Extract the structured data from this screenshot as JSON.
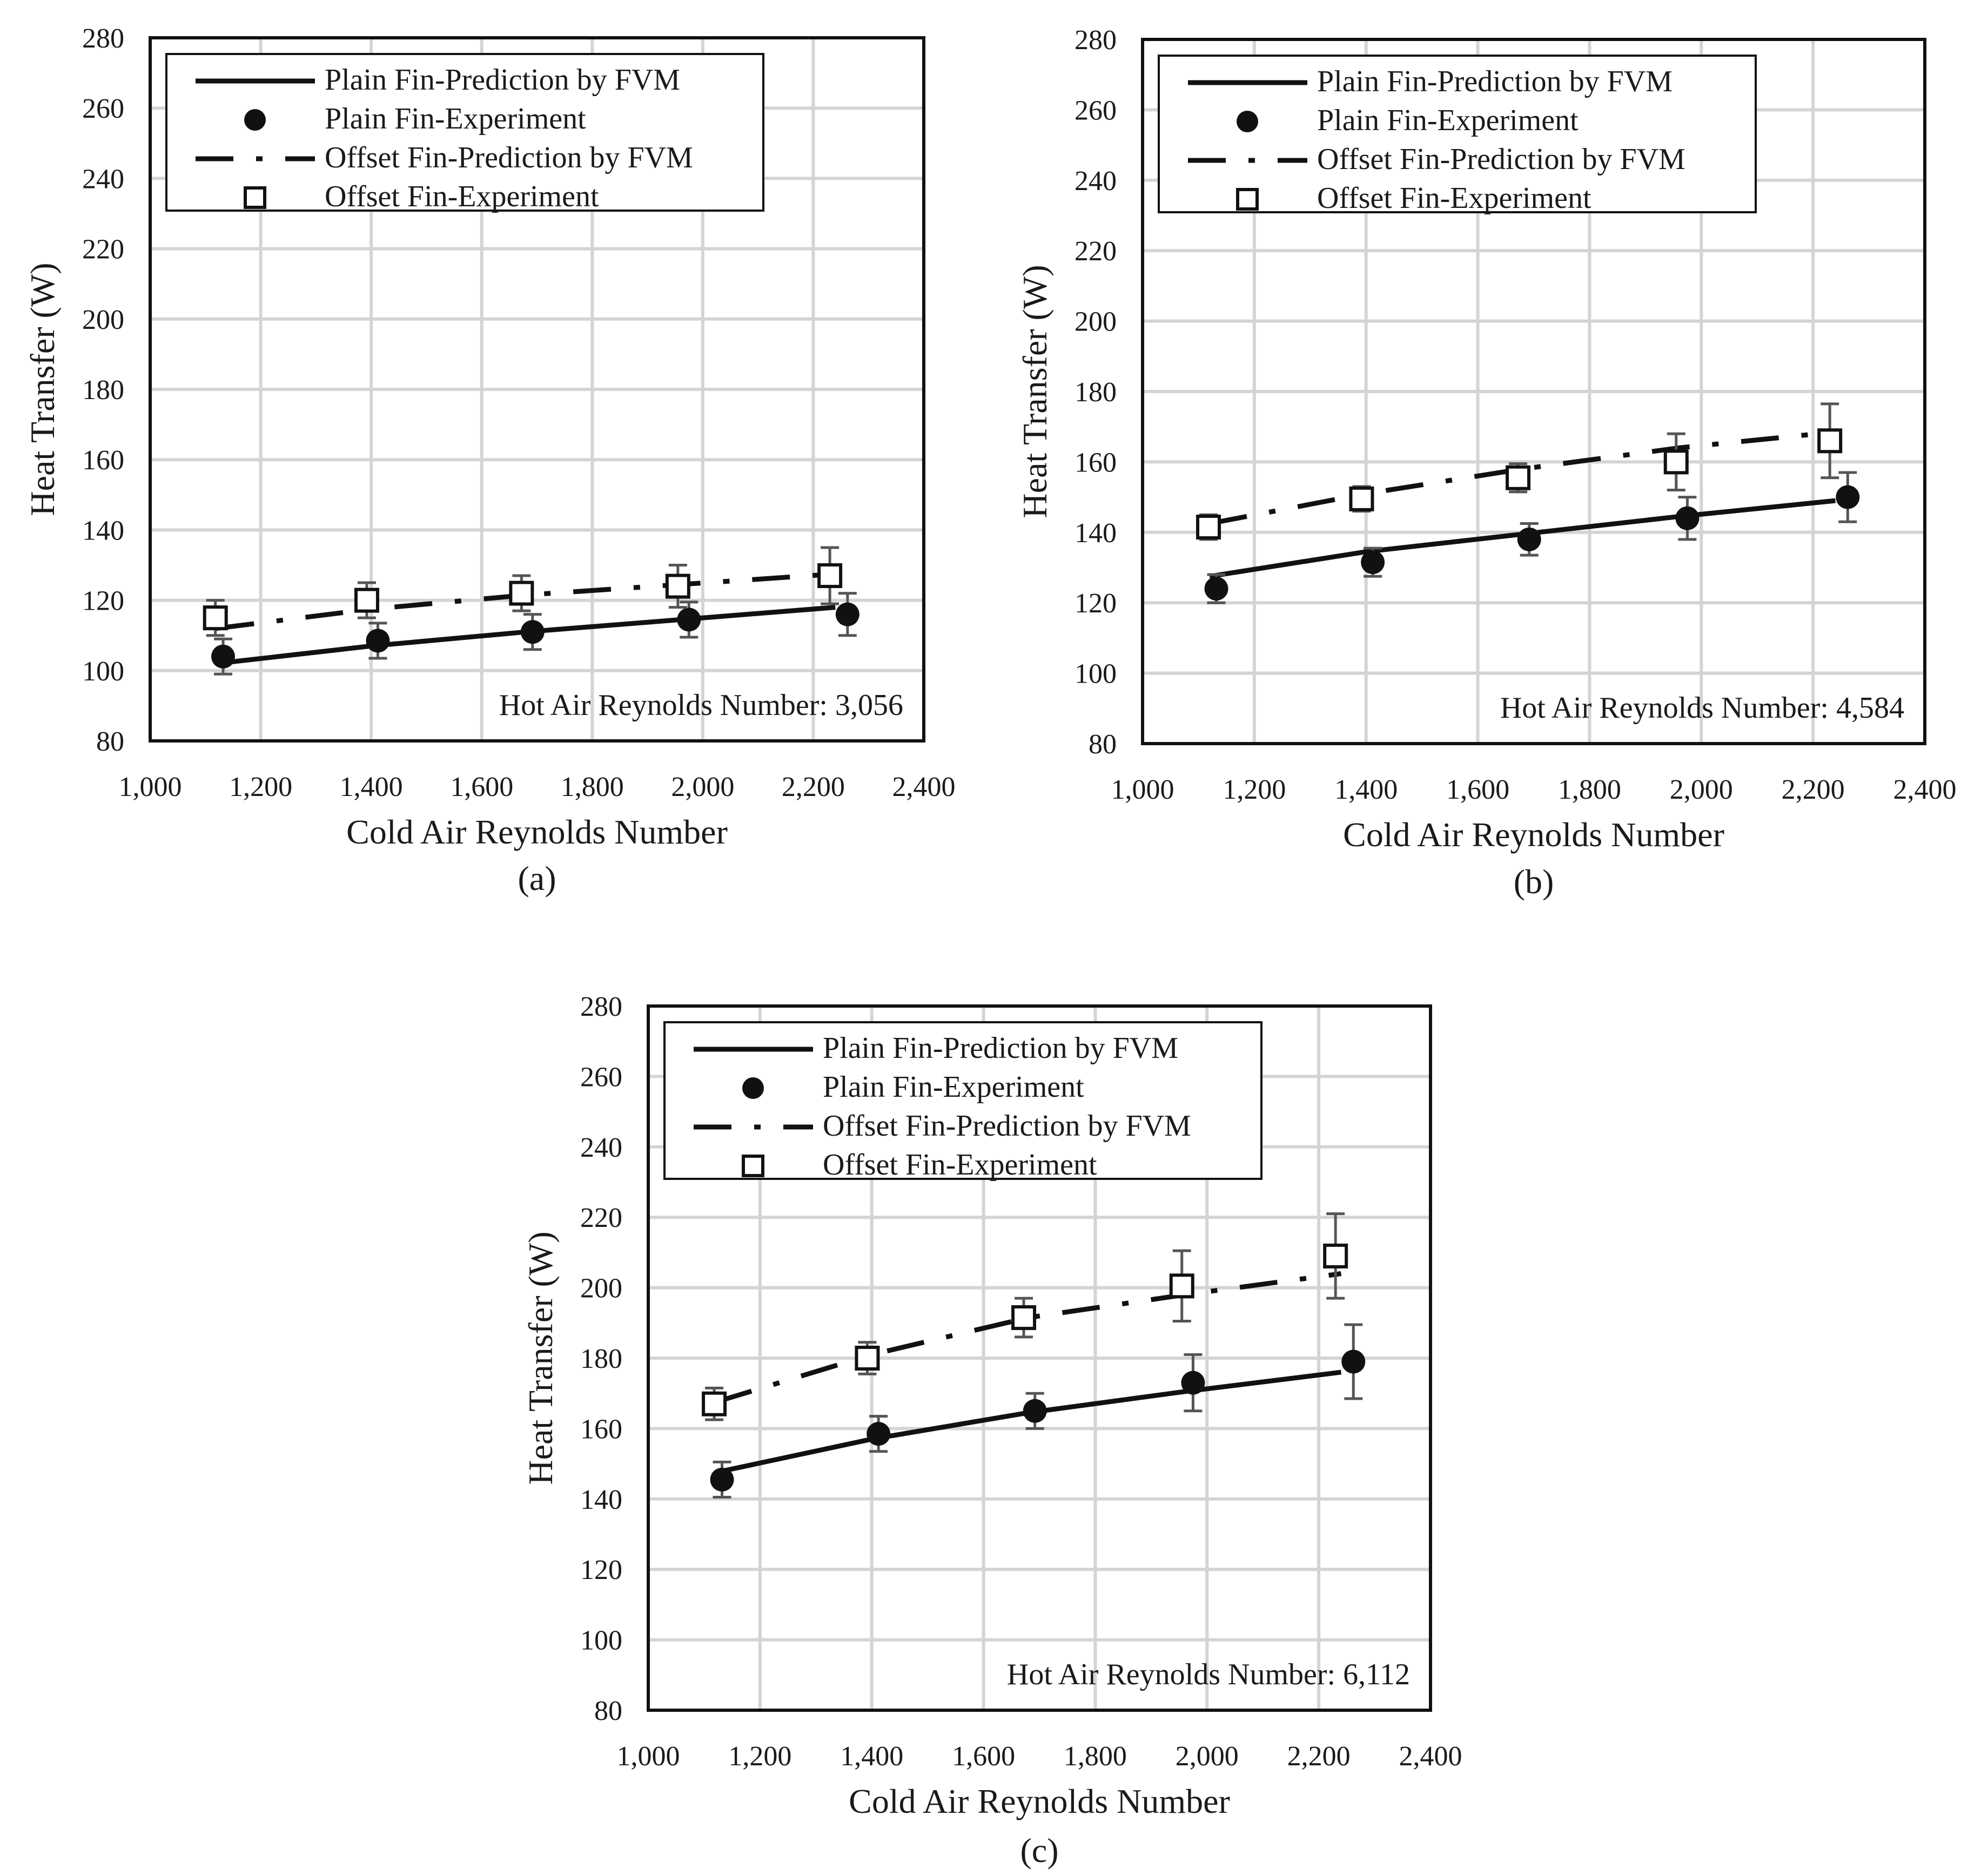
{
  "figure": {
    "panels": [
      "(a)",
      "(b)",
      "(c)"
    ]
  },
  "colors": {
    "line": "#111111",
    "grid": "#d4d4d4",
    "errorbar": "#555555",
    "background": "#ffffff"
  },
  "chart_data": [
    {
      "type": "line",
      "panel": "(a)",
      "title": "",
      "xlabel": "Cold Air Reynolds Number",
      "ylabel": "Heat Transfer (W)",
      "xlim": [
        1000,
        2400
      ],
      "ylim": [
        80,
        280
      ],
      "xticks": [
        "1,000",
        "1,200",
        "1,400",
        "1,600",
        "1,800",
        "2,000",
        "2,200",
        "2,400"
      ],
      "yticks": [
        "80",
        "100",
        "120",
        "140",
        "160",
        "180",
        "200",
        "220",
        "240",
        "260",
        "280"
      ],
      "grid": true,
      "legend_position": "top-left",
      "legend": [
        "Plain Fin-Prediction by FVM",
        "Plain Fin-Experiment",
        "Offset Fin-Prediction by FVM",
        "Offset Fin-Experiment"
      ],
      "annotation": "Hot Air Reynolds Number: 3,056",
      "series": [
        {
          "name": "Plain Fin-Prediction by FVM",
          "style": "solid",
          "x": [
            1120,
            1400,
            1680,
            1960,
            2240
          ],
          "y": [
            102,
            107,
            111,
            114.5,
            118
          ]
        },
        {
          "name": "Plain Fin-Experiment",
          "style": "filled-circle",
          "x": [
            1132,
            1412,
            1692,
            1975,
            2262
          ],
          "y": [
            104,
            108.5,
            111,
            114.5,
            116
          ],
          "err": [
            5,
            5,
            5,
            5,
            6
          ]
        },
        {
          "name": "Offset Fin-Prediction by FVM",
          "style": "dash-dot",
          "x": [
            1120,
            1400,
            1680,
            1960,
            2240
          ],
          "y": [
            112,
            117.5,
            121.5,
            124.5,
            127.5
          ]
        },
        {
          "name": "Offset Fin-Experiment",
          "style": "open-square",
          "x": [
            1118,
            1392,
            1672,
            1955,
            2230
          ],
          "y": [
            115,
            120,
            122,
            124,
            127
          ],
          "err": [
            5,
            5,
            5,
            6,
            8
          ]
        }
      ]
    },
    {
      "type": "line",
      "panel": "(b)",
      "title": "",
      "xlabel": "Cold Air Reynolds Number",
      "ylabel": "Heat Transfer (W)",
      "xlim": [
        1000,
        2400
      ],
      "ylim": [
        80,
        280
      ],
      "xticks": [
        "1,000",
        "1,200",
        "1,400",
        "1,600",
        "1,800",
        "2,000",
        "2,200",
        "2,400"
      ],
      "yticks": [
        "80",
        "100",
        "120",
        "140",
        "160",
        "180",
        "200",
        "220",
        "240",
        "260",
        "280"
      ],
      "grid": true,
      "legend_position": "top-left",
      "legend": [
        "Plain Fin-Prediction by FVM",
        "Plain Fin-Experiment",
        "Offset Fin-Prediction by FVM",
        "Offset Fin-Experiment"
      ],
      "annotation": "Hot Air Reynolds Number: 4,584",
      "series": [
        {
          "name": "Plain Fin-Prediction by FVM",
          "style": "solid",
          "x": [
            1120,
            1400,
            1680,
            1960,
            2240
          ],
          "y": [
            127.5,
            134.5,
            139.5,
            144.5,
            149
          ]
        },
        {
          "name": "Plain Fin-Experiment",
          "style": "filled-circle",
          "x": [
            1132,
            1412,
            1692,
            1975,
            2262
          ],
          "y": [
            124,
            131.5,
            138,
            144,
            150
          ],
          "err": [
            4,
            4,
            4.5,
            6,
            7
          ]
        },
        {
          "name": "Offset Fin-Prediction by FVM",
          "style": "dash-dot",
          "x": [
            1120,
            1400,
            1680,
            1960,
            2240
          ],
          "y": [
            142.5,
            151,
            158,
            164,
            168.5
          ]
        },
        {
          "name": "Offset Fin-Experiment",
          "style": "open-square",
          "x": [
            1118,
            1392,
            1672,
            1955,
            2230
          ],
          "y": [
            141.5,
            149.5,
            155.5,
            160,
            166
          ],
          "err": [
            3.5,
            3.5,
            4,
            8,
            10.5
          ]
        }
      ]
    },
    {
      "type": "line",
      "panel": "(c)",
      "title": "",
      "xlabel": "Cold Air Reynolds Number",
      "ylabel": "Heat Transfer (W)",
      "xlim": [
        1000,
        2400
      ],
      "ylim": [
        80,
        280
      ],
      "xticks": [
        "1,000",
        "1,200",
        "1,400",
        "1,600",
        "1,800",
        "2,000",
        "2,200",
        "2,400"
      ],
      "yticks": [
        "80",
        "100",
        "120",
        "140",
        "160",
        "180",
        "200",
        "220",
        "240",
        "260",
        "280"
      ],
      "grid": true,
      "legend_position": "top-left",
      "legend": [
        "Plain Fin-Prediction by FVM",
        "Plain Fin-Experiment",
        "Offset Fin-Prediction by FVM",
        "Offset Fin-Experiment"
      ],
      "annotation": "Hot Air Reynolds Number: 6,112",
      "series": [
        {
          "name": "Plain Fin-Prediction by FVM",
          "style": "solid",
          "x": [
            1120,
            1400,
            1680,
            1960,
            2240
          ],
          "y": [
            147.5,
            157,
            164.5,
            170.5,
            176
          ]
        },
        {
          "name": "Plain Fin-Experiment",
          "style": "filled-circle",
          "x": [
            1132,
            1412,
            1692,
            1975,
            2262
          ],
          "y": [
            145.5,
            158.5,
            165,
            173,
            179
          ],
          "err": [
            5,
            5,
            5,
            8,
            10.5
          ]
        },
        {
          "name": "Offset Fin-Prediction by FVM",
          "style": "dash-dot",
          "x": [
            1120,
            1400,
            1680,
            1960,
            2240
          ],
          "y": [
            167.5,
            181,
            191.5,
            198,
            204
          ]
        },
        {
          "name": "Offset Fin-Experiment",
          "style": "open-square",
          "x": [
            1118,
            1392,
            1672,
            1955,
            2230
          ],
          "y": [
            167,
            180,
            191.5,
            200.5,
            209
          ],
          "err": [
            4.5,
            4.5,
            5.5,
            10,
            12
          ]
        }
      ]
    }
  ]
}
